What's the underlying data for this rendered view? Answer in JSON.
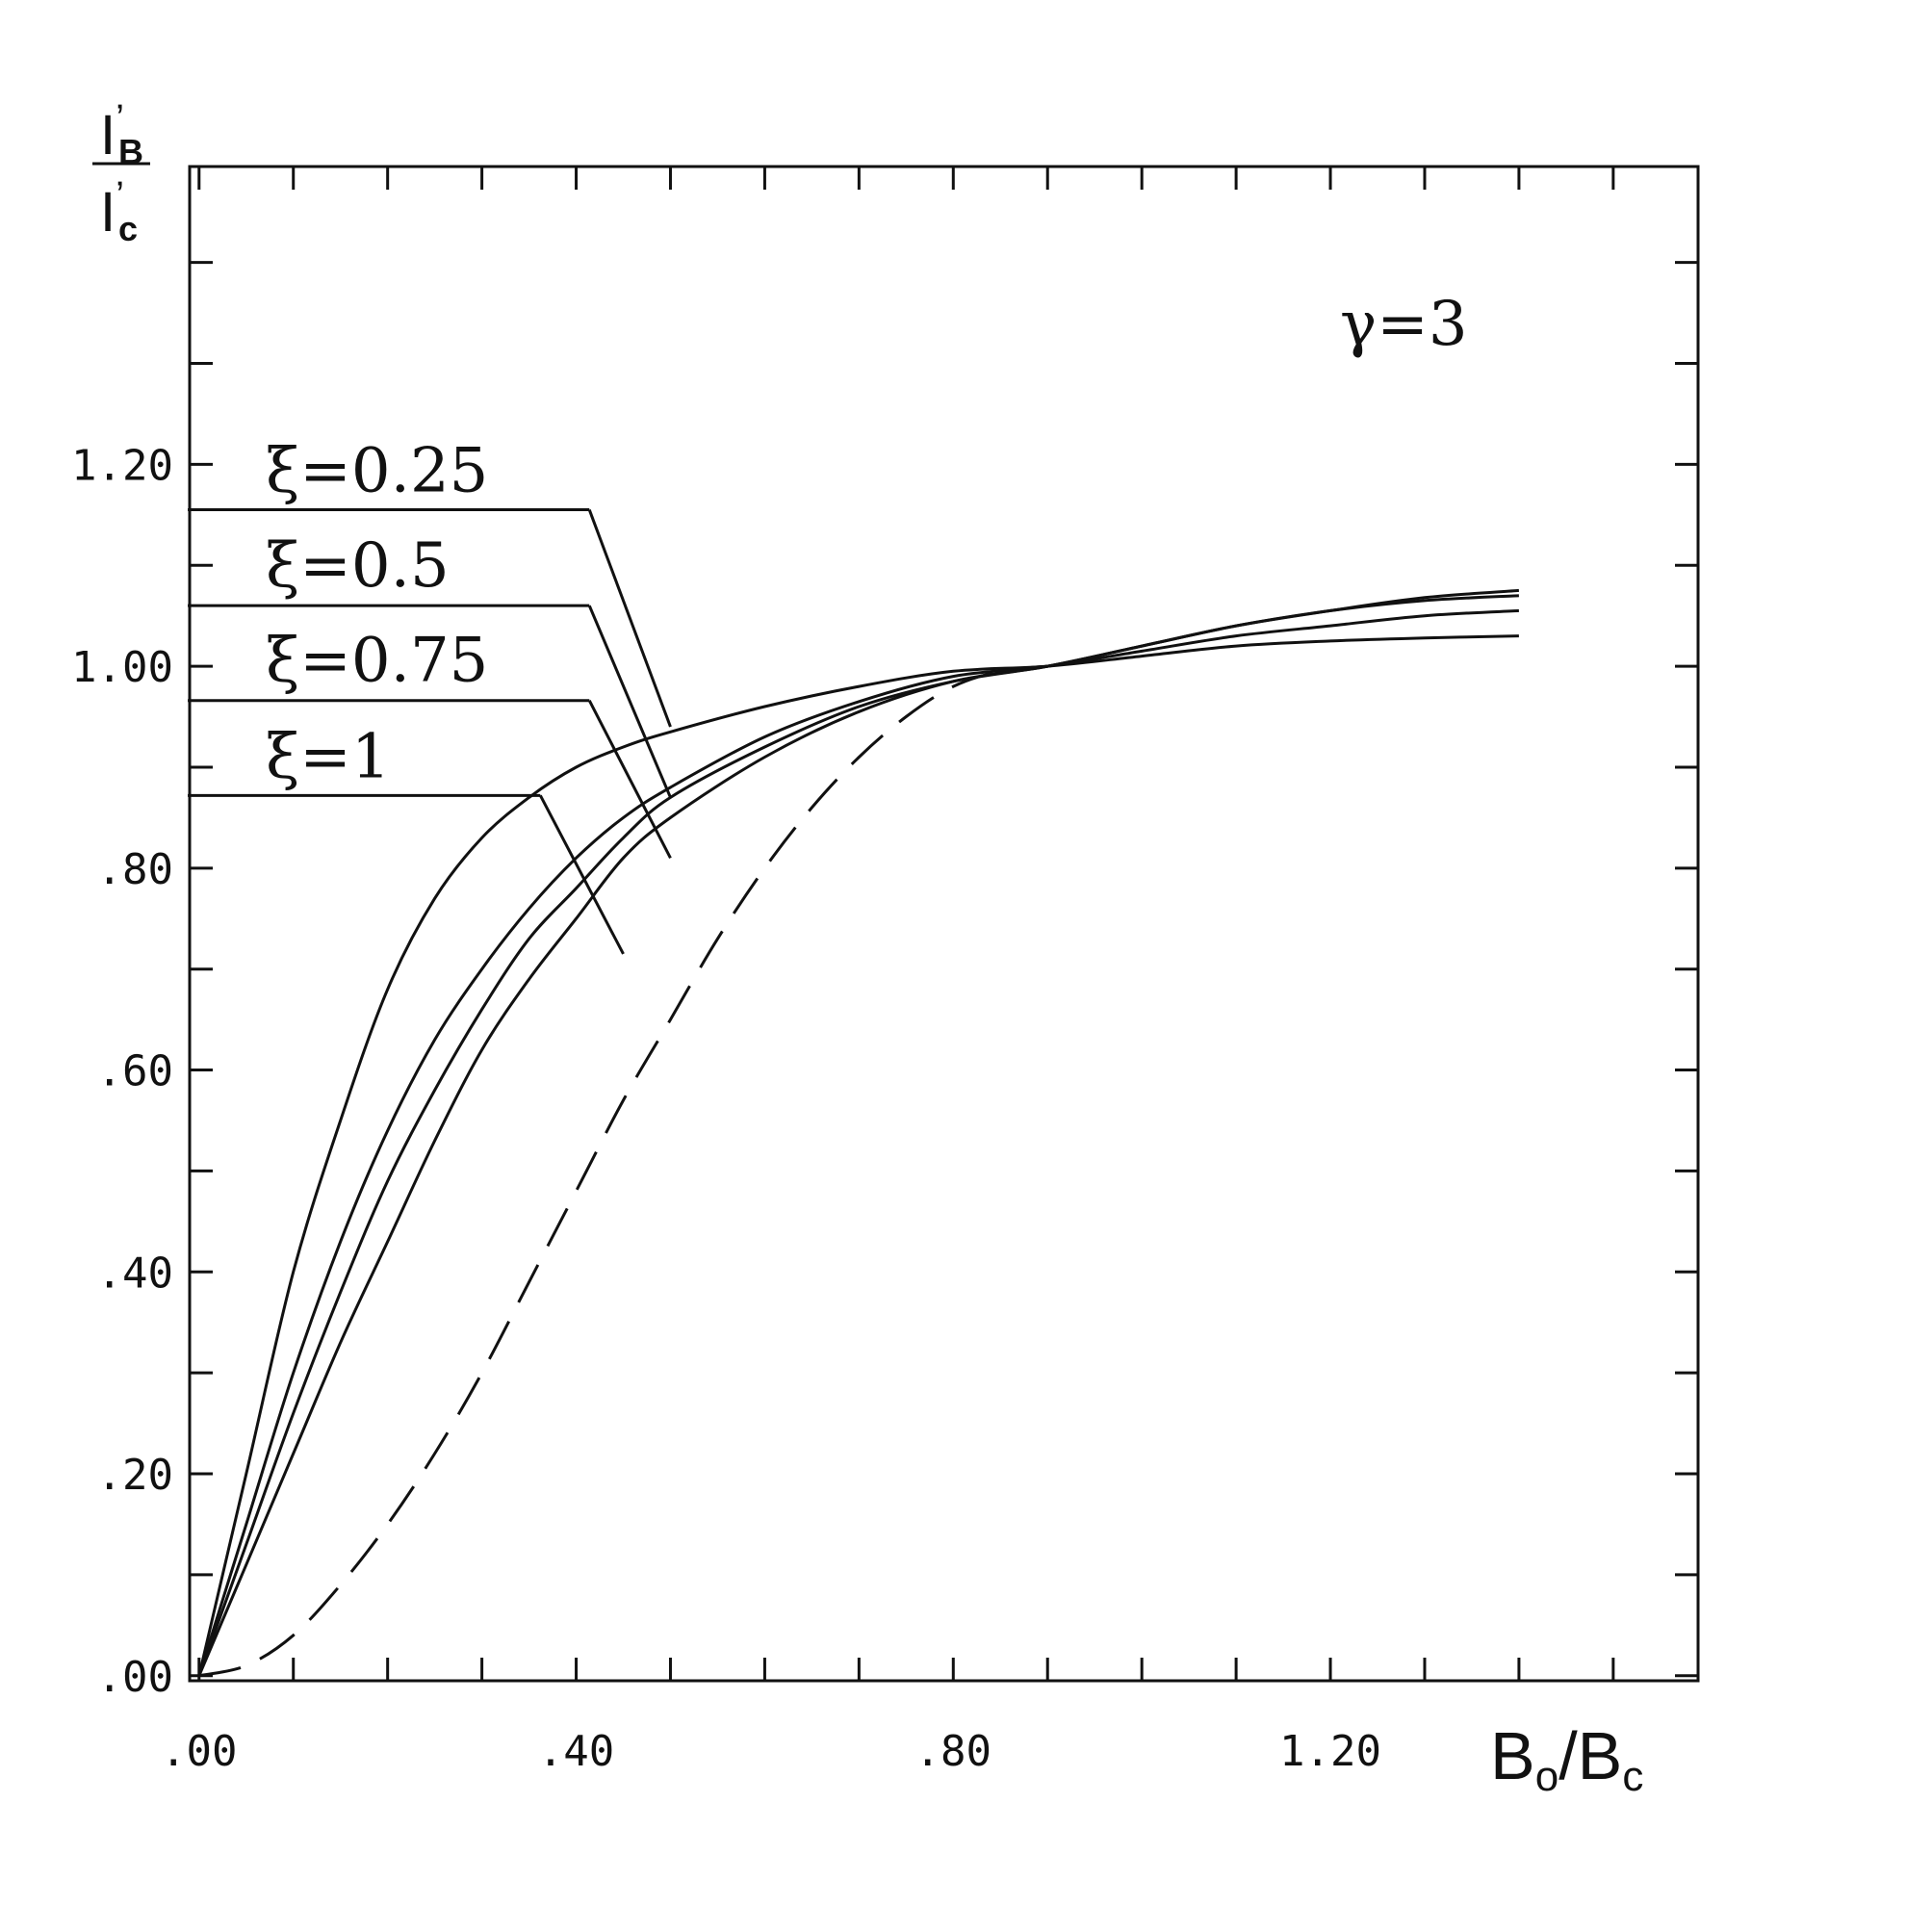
{
  "chart_data": {
    "type": "line",
    "xlabel": {
      "main": "B",
      "sub1": "o",
      "sep": "/",
      "main2": "B",
      "sub2": "c"
    },
    "ylabel": {
      "num_main": "I",
      "num_prime": "’",
      "num_sub": "B",
      "den_main": "I",
      "den_prime": "’",
      "den_sub": "c"
    },
    "xlim": [
      -0.01,
      1.59
    ],
    "ylim": [
      -0.005,
      1.495
    ],
    "x_ticks": [
      0,
      0.1,
      0.2,
      0.3,
      0.4,
      0.5,
      0.6,
      0.7,
      0.8,
      0.9,
      1.0,
      1.1,
      1.2,
      1.3,
      1.4,
      1.5
    ],
    "y_ticks": [
      0,
      0.1,
      0.2,
      0.3,
      0.4,
      0.5,
      0.6,
      0.7,
      0.8,
      0.9,
      1.0,
      1.1,
      1.2,
      1.3,
      1.4
    ],
    "x_tick_labels": [
      {
        "value": 0.0,
        "text": ".00"
      },
      {
        "value": 0.4,
        "text": ".40"
      },
      {
        "value": 0.8,
        "text": ".80"
      },
      {
        "value": 1.2,
        "text": "1.20"
      }
    ],
    "y_tick_labels": [
      {
        "value": 0.0,
        "text": ".00"
      },
      {
        "value": 0.2,
        "text": ".20"
      },
      {
        "value": 0.4,
        "text": ".40"
      },
      {
        "value": 0.6,
        "text": ".60"
      },
      {
        "value": 0.8,
        "text": ".80"
      },
      {
        "value": 1.0,
        "text": "1.00"
      },
      {
        "value": 1.2,
        "text": "1.20"
      }
    ],
    "annotation_gamma": "γ=3",
    "series": [
      {
        "name": "ξ=0.25",
        "dashed": false,
        "x": [
          0,
          0.05,
          0.1,
          0.15,
          0.2,
          0.25,
          0.3,
          0.35,
          0.4,
          0.45,
          0.5,
          0.6,
          0.7,
          0.8,
          0.9,
          1.0,
          1.1,
          1.2,
          1.3,
          1.4
        ],
        "y": [
          0,
          0.2,
          0.4,
          0.55,
          0.68,
          0.77,
          0.83,
          0.87,
          0.9,
          0.92,
          0.935,
          0.96,
          0.98,
          0.995,
          1.0,
          1.01,
          1.02,
          1.025,
          1.028,
          1.03
        ]
      },
      {
        "name": "ξ=0.5",
        "dashed": false,
        "x": [
          0,
          0.05,
          0.1,
          0.15,
          0.2,
          0.25,
          0.3,
          0.35,
          0.4,
          0.45,
          0.5,
          0.6,
          0.7,
          0.8,
          0.9,
          1.0,
          1.1,
          1.2,
          1.3,
          1.4
        ],
        "y": [
          0,
          0.15,
          0.3,
          0.43,
          0.54,
          0.63,
          0.7,
          0.76,
          0.81,
          0.85,
          0.88,
          0.93,
          0.965,
          0.99,
          1.0,
          1.015,
          1.03,
          1.04,
          1.05,
          1.055
        ]
      },
      {
        "name": "ξ=0.75",
        "dashed": false,
        "x": [
          0,
          0.05,
          0.1,
          0.15,
          0.2,
          0.25,
          0.3,
          0.35,
          0.4,
          0.45,
          0.5,
          0.6,
          0.7,
          0.8,
          0.9,
          1.0,
          1.1,
          1.2,
          1.3,
          1.4
        ],
        "y": [
          0,
          0.13,
          0.26,
          0.38,
          0.49,
          0.58,
          0.66,
          0.73,
          0.78,
          0.83,
          0.87,
          0.92,
          0.96,
          0.985,
          1.0,
          1.02,
          1.04,
          1.055,
          1.065,
          1.07
        ]
      },
      {
        "name": "ξ=1",
        "dashed": false,
        "x": [
          0,
          0.05,
          0.1,
          0.15,
          0.2,
          0.25,
          0.3,
          0.35,
          0.4,
          0.45,
          0.5,
          0.6,
          0.7,
          0.8,
          0.9,
          1.0,
          1.1,
          1.2,
          1.3,
          1.4
        ],
        "y": [
          0,
          0.11,
          0.22,
          0.33,
          0.43,
          0.53,
          0.62,
          0.69,
          0.75,
          0.81,
          0.85,
          0.91,
          0.955,
          0.985,
          1.0,
          1.02,
          1.04,
          1.055,
          1.068,
          1.075
        ]
      },
      {
        "name": "",
        "dashed": true,
        "x": [
          0,
          0.05,
          0.1,
          0.15,
          0.2,
          0.25,
          0.3,
          0.35,
          0.4,
          0.45,
          0.5,
          0.55,
          0.6,
          0.65,
          0.7,
          0.75,
          0.8,
          0.85,
          0.9
        ],
        "y": [
          0,
          0.01,
          0.04,
          0.09,
          0.15,
          0.22,
          0.3,
          0.39,
          0.48,
          0.57,
          0.65,
          0.73,
          0.8,
          0.86,
          0.91,
          0.95,
          0.98,
          0.995,
          1.0
        ]
      }
    ],
    "leaders": [
      {
        "label": "ξ=0.25",
        "label_y": 1.196,
        "shelf_y": 1.155,
        "shelf_x": [
          -0.012,
          0.414
        ],
        "end": [
          0.5,
          0.94
        ]
      },
      {
        "label": "ξ=0.5",
        "label_y": 1.102,
        "shelf_y": 1.06,
        "shelf_x": [
          -0.012,
          0.414
        ],
        "end": [
          0.5,
          0.87
        ]
      },
      {
        "label": "ξ=0.75",
        "label_y": 1.008,
        "shelf_y": 0.966,
        "shelf_x": [
          -0.012,
          0.414
        ],
        "end": [
          0.5,
          0.81
        ]
      },
      {
        "label": "ξ=1",
        "label_y": 0.913,
        "shelf_y": 0.872,
        "shelf_x": [
          -0.012,
          0.362
        ],
        "end": [
          0.45,
          0.715
        ]
      }
    ]
  }
}
